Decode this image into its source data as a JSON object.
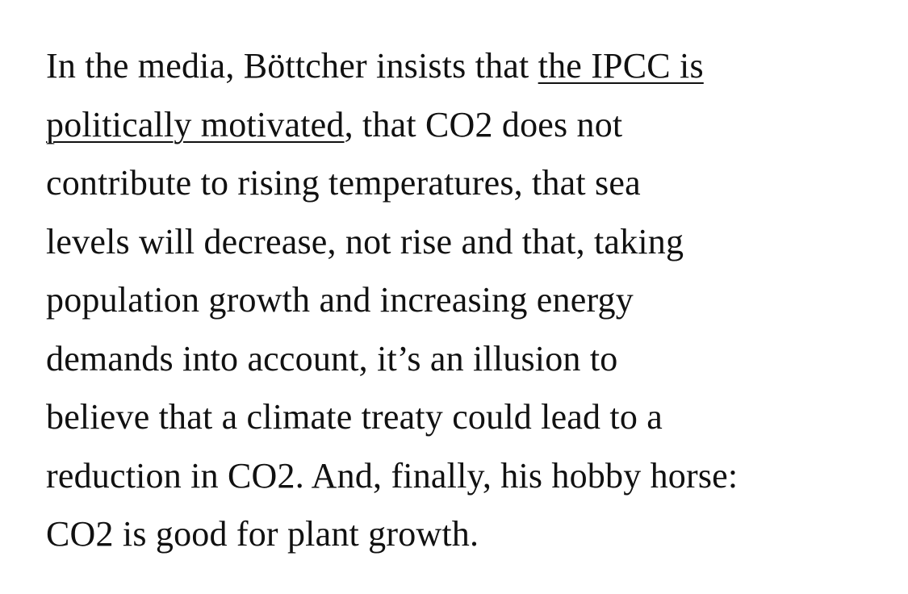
{
  "article": {
    "lines": [
      {
        "before": "In the media, Böttcher insists that ",
        "link": "the IPCC is",
        "after": ""
      },
      {
        "before": "",
        "link": "politically motivated",
        "after": ", that CO2 does not"
      },
      {
        "before": "contribute to rising temperatures, that sea",
        "link": "",
        "after": ""
      },
      {
        "before": "levels will decrease, not rise and that, taking",
        "link": "",
        "after": ""
      },
      {
        "before": "population growth and increasing energy",
        "link": "",
        "after": ""
      },
      {
        "before": "demands into account, it’s an illusion to",
        "link": "",
        "after": ""
      },
      {
        "before": "believe that a climate treaty could lead to a",
        "link": "",
        "after": ""
      },
      {
        "before": "reduction in CO2. And, finally, his hobby horse:",
        "link": "",
        "after": ""
      },
      {
        "before": "CO2 is good for plant growth.",
        "link": "",
        "after": ""
      }
    ]
  }
}
